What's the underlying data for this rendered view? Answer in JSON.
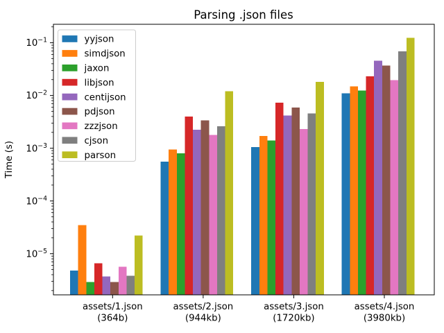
{
  "chart_data": {
    "type": "bar",
    "title": "Parsing .json files",
    "ylabel": "Time (s)",
    "xlabel": "",
    "yscale": "log",
    "ylim": [
      1.66e-06,
      0.224
    ],
    "y_tick_exponents": [
      -5,
      -4,
      -3,
      -2,
      -1
    ],
    "grid": false,
    "legend_position": "upper left",
    "categories": [
      {
        "label": "assets/1.json",
        "sublabel": "(364b)"
      },
      {
        "label": "assets/2.json",
        "sublabel": "(944kb)"
      },
      {
        "label": "assets/3.json",
        "sublabel": "(1720kb)"
      },
      {
        "label": "assets/4.json",
        "sublabel": "(3980kb)"
      }
    ],
    "series": [
      {
        "name": "yyjson",
        "color": "#1f77b4",
        "values": [
          4.8e-06,
          0.00056,
          0.00105,
          0.011
        ]
      },
      {
        "name": "simdjson",
        "color": "#ff7f0e",
        "values": [
          3.5e-05,
          0.00095,
          0.0017,
          0.015
        ]
      },
      {
        "name": "jaxon",
        "color": "#2ca02c",
        "values": [
          2.9e-06,
          0.0008,
          0.0014,
          0.0125
        ]
      },
      {
        "name": "libjson",
        "color": "#d62728",
        "values": [
          6.6e-06,
          0.004,
          0.0073,
          0.023
        ]
      },
      {
        "name": "centijson",
        "color": "#9467bd",
        "values": [
          3.7e-06,
          0.00225,
          0.0042,
          0.046
        ]
      },
      {
        "name": "pdjson",
        "color": "#8c564b",
        "values": [
          2.9e-06,
          0.0034,
          0.0059,
          0.037
        ]
      },
      {
        "name": "zzzjson",
        "color": "#e377c2",
        "values": [
          5.7e-06,
          0.0018,
          0.0023,
          0.0195
        ]
      },
      {
        "name": "cjson",
        "color": "#7f7f7f",
        "values": [
          3.8e-06,
          0.0026,
          0.0046,
          0.069
        ]
      },
      {
        "name": "parson",
        "color": "#bcbd22",
        "values": [
          2.2e-05,
          0.012,
          0.018,
          0.125
        ]
      }
    ]
  }
}
